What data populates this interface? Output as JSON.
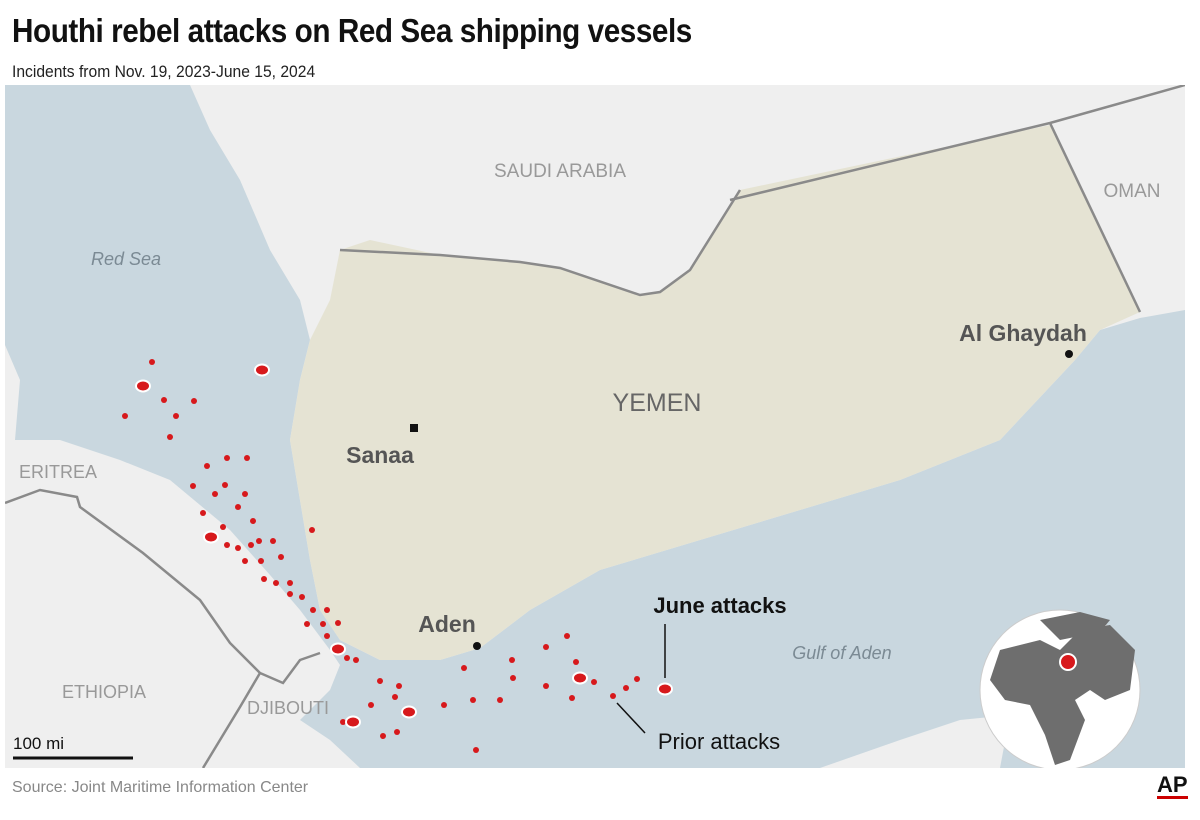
{
  "header": {
    "title": "Houthi rebel attacks on Red Sea shipping vessels",
    "subtitle": "Incidents from Nov. 19, 2023-June 15, 2024"
  },
  "labels": {
    "saudi": "SAUDI ARABIA",
    "oman": "OMAN",
    "yemen": "YEMEN",
    "red_sea": "Red Sea",
    "eritrea": "ERITREA",
    "ethiopia": "ETHIOPIA",
    "djibouti": "DJIBOUTI",
    "gulf": "Gulf of Aden",
    "sanaa": "Sanaa",
    "aden": "Aden",
    "al_ghaydah": "Al Ghaydah"
  },
  "legend": {
    "june": "June attacks",
    "prior": "Prior attacks"
  },
  "scale": "100 mi",
  "footer": {
    "source": "Source: Joint Maritime Information Center",
    "logo": "AP"
  },
  "colors": {
    "sea": "#c9d7df",
    "land": "#eeeeee",
    "yemen": "#e5e3d3",
    "attack": "#d7191c",
    "border": "#8a8a8a"
  }
}
